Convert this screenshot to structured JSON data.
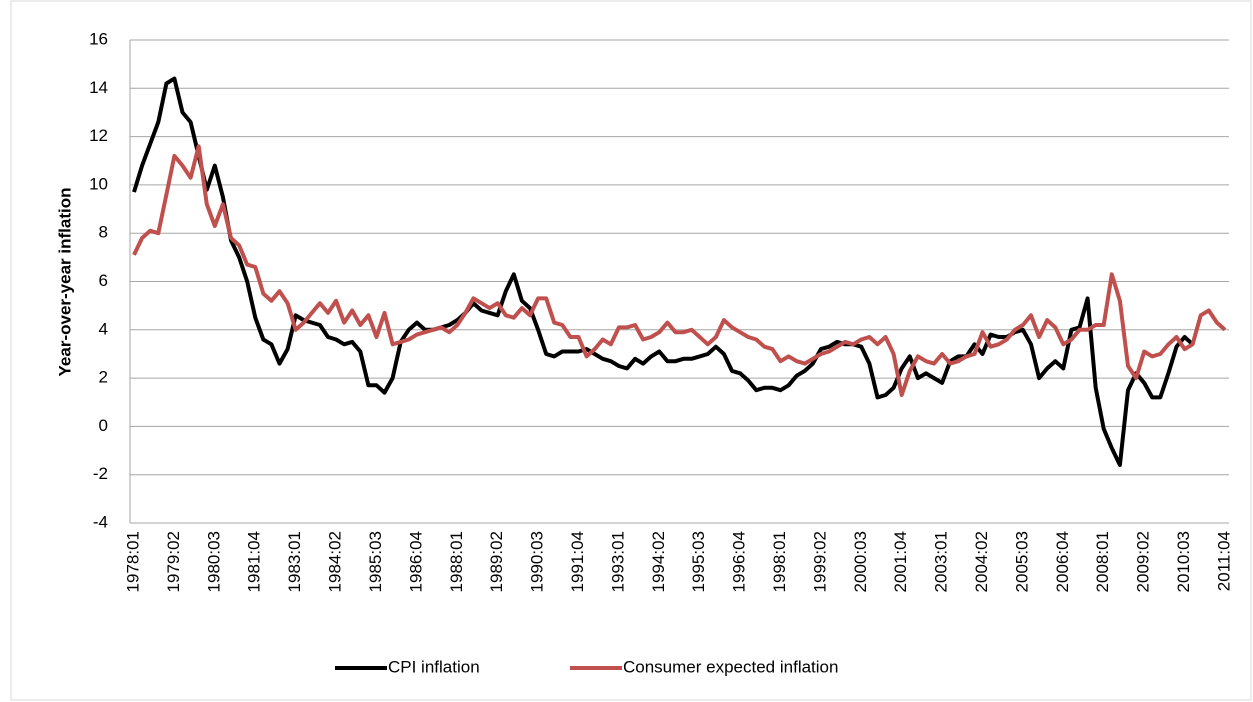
{
  "chart_data": {
    "type": "line",
    "y_label": "Year-over-year inflation",
    "categories": [
      "1978:01",
      null,
      null,
      null,
      null,
      "1979:02",
      null,
      null,
      null,
      null,
      "1980:03",
      null,
      null,
      null,
      null,
      "1981:04",
      null,
      null,
      null,
      null,
      "1983:01",
      null,
      null,
      null,
      null,
      "1984:02",
      null,
      null,
      null,
      null,
      "1985:03",
      null,
      null,
      null,
      null,
      "1986:04",
      null,
      null,
      null,
      null,
      "1988:01",
      null,
      null,
      null,
      null,
      "1989:02",
      null,
      null,
      null,
      null,
      "1990:03",
      null,
      null,
      null,
      null,
      "1991:04",
      null,
      null,
      null,
      null,
      "1993:01",
      null,
      null,
      null,
      null,
      "1994:02",
      null,
      null,
      null,
      null,
      "1995:03",
      null,
      null,
      null,
      null,
      "1996:04",
      null,
      null,
      null,
      null,
      "1998:01",
      null,
      null,
      null,
      null,
      "1999:02",
      null,
      null,
      null,
      null,
      "2000:03",
      null,
      null,
      null,
      null,
      "2001:04",
      null,
      null,
      null,
      null,
      "2003:01",
      null,
      null,
      null,
      null,
      "2004:02",
      null,
      null,
      null,
      null,
      "2005:03",
      null,
      null,
      null,
      null,
      "2006:04",
      null,
      null,
      null,
      null,
      "2008:01",
      null,
      null,
      null,
      null,
      "2009:02",
      null,
      null,
      null,
      null,
      "2010:03",
      null,
      null,
      null,
      null,
      "2011:04"
    ],
    "series": [
      {
        "name": "CPI inflation",
        "color": "#000000",
        "values": [
          9.7,
          10.8,
          11.7,
          12.6,
          14.2,
          14.4,
          13.0,
          12.6,
          11.2,
          9.8,
          10.8,
          9.5,
          7.7,
          7.0,
          6.0,
          4.5,
          3.6,
          3.4,
          2.6,
          3.2,
          4.6,
          4.4,
          4.3,
          4.2,
          3.7,
          3.6,
          3.4,
          3.5,
          3.1,
          1.7,
          1.7,
          1.4,
          2.0,
          3.5,
          4.0,
          4.3,
          4.0,
          4.0,
          4.1,
          4.2,
          4.4,
          4.7,
          5.1,
          4.8,
          4.7,
          4.6,
          5.6,
          6.3,
          5.2,
          4.9,
          4.0,
          3.0,
          2.9,
          3.1,
          3.1,
          3.1,
          3.2,
          3.0,
          2.8,
          2.7,
          2.5,
          2.4,
          2.8,
          2.6,
          2.9,
          3.1,
          2.7,
          2.7,
          2.8,
          2.8,
          2.9,
          3.0,
          3.3,
          3.0,
          2.3,
          2.2,
          1.9,
          1.5,
          1.6,
          1.6,
          1.5,
          1.7,
          2.1,
          2.3,
          2.6,
          3.2,
          3.3,
          3.5,
          3.4,
          3.4,
          3.3,
          2.6,
          1.2,
          1.3,
          1.6,
          2.4,
          2.9,
          2.0,
          2.2,
          2.0,
          1.8,
          2.7,
          2.9,
          2.9,
          3.4,
          3.0,
          3.8,
          3.7,
          3.7,
          3.9,
          4.0,
          3.4,
          2.0,
          2.4,
          2.7,
          2.4,
          4.0,
          4.1,
          5.3,
          1.6,
          -0.1,
          -0.9,
          -1.6,
          1.5,
          2.2,
          1.8,
          1.2,
          1.2,
          2.2,
          3.3,
          3.7,
          3.4,
          null,
          null,
          null,
          null
        ]
      },
      {
        "name": "Consumer expected inflation",
        "color": "#c0504d",
        "values": [
          7.1,
          7.8,
          8.1,
          8.0,
          9.6,
          11.2,
          10.8,
          10.3,
          11.6,
          9.2,
          8.3,
          9.2,
          7.8,
          7.5,
          6.7,
          6.6,
          5.5,
          5.2,
          5.6,
          5.1,
          4.0,
          4.3,
          4.7,
          5.1,
          4.7,
          5.2,
          4.3,
          4.8,
          4.2,
          4.6,
          3.7,
          4.7,
          3.4,
          3.5,
          3.6,
          3.8,
          3.9,
          4.0,
          4.1,
          3.9,
          4.2,
          4.7,
          5.3,
          5.1,
          4.9,
          5.1,
          4.6,
          4.5,
          4.9,
          4.6,
          5.3,
          5.3,
          4.3,
          4.2,
          3.7,
          3.7,
          2.9,
          3.2,
          3.6,
          3.4,
          4.1,
          4.1,
          4.2,
          3.6,
          3.7,
          3.9,
          4.3,
          3.9,
          3.9,
          4.0,
          3.7,
          3.4,
          3.7,
          4.4,
          4.1,
          3.9,
          3.7,
          3.6,
          3.3,
          3.2,
          2.7,
          2.9,
          2.7,
          2.6,
          2.8,
          3.0,
          3.1,
          3.3,
          3.5,
          3.4,
          3.6,
          3.7,
          3.4,
          3.7,
          3.0,
          1.3,
          2.3,
          2.9,
          2.7,
          2.6,
          3.0,
          2.6,
          2.7,
          2.9,
          3.0,
          3.9,
          3.3,
          3.4,
          3.6,
          4.0,
          4.2,
          4.6,
          3.7,
          4.4,
          4.1,
          3.4,
          3.6,
          4.0,
          4.0,
          4.2,
          4.2,
          6.3,
          5.2,
          2.5,
          2.0,
          3.1,
          2.9,
          3.0,
          3.4,
          3.7,
          3.2,
          3.4,
          4.6,
          4.8,
          4.3,
          4.0
        ]
      }
    ],
    "ylim": [
      -4,
      16
    ],
    "yticks": [
      -4,
      -2,
      0,
      2,
      4,
      6,
      8,
      10,
      12,
      14,
      16
    ],
    "grid": true,
    "legend": "bottom"
  }
}
